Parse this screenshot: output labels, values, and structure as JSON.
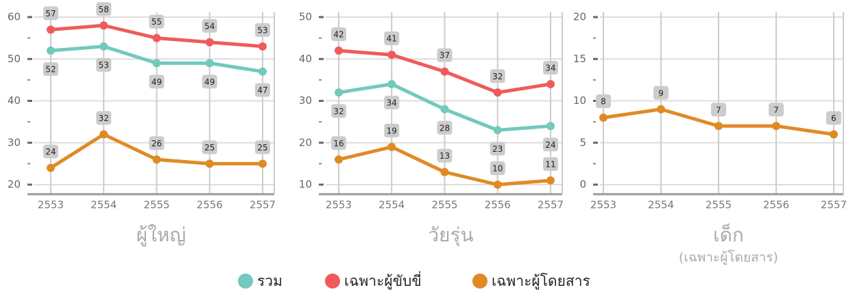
{
  "chart_data": [
    {
      "type": "line",
      "title": "ผู้ใหญ่",
      "categories": [
        "2553",
        "2554",
        "2555",
        "2556",
        "2557"
      ],
      "ylim": [
        20,
        60
      ],
      "yticks": [
        20,
        30,
        40,
        50,
        60
      ],
      "grid": true,
      "series": [
        {
          "name": "รวม",
          "color": "#72c9bc",
          "labels": "below",
          "values": [
            52,
            53,
            49,
            49,
            47
          ]
        },
        {
          "name": "เฉพาะผู้ขับขี่",
          "color": "#ef5b5b",
          "labels": "above",
          "values": [
            57,
            58,
            55,
            54,
            53
          ]
        },
        {
          "name": "เฉพาะผู้โดยสาร",
          "color": "#e08a26",
          "labels": "above",
          "values": [
            24,
            32,
            26,
            25,
            25
          ]
        }
      ]
    },
    {
      "type": "line",
      "title": "วัยรุ่น",
      "categories": [
        "2553",
        "2554",
        "2555",
        "2556",
        "2557"
      ],
      "ylim": [
        10,
        50
      ],
      "yticks": [
        10,
        20,
        30,
        40,
        50
      ],
      "grid": true,
      "series": [
        {
          "name": "รวม",
          "color": "#72c9bc",
          "labels": "below",
          "values": [
            32,
            34,
            28,
            23,
            24
          ]
        },
        {
          "name": "เฉพาะผู้ขับขี่",
          "color": "#ef5b5b",
          "labels": "above",
          "values": [
            42,
            41,
            37,
            32,
            34
          ]
        },
        {
          "name": "เฉพาะผู้โดยสาร",
          "color": "#e08a26",
          "labels": "above",
          "values": [
            16,
            19,
            13,
            10,
            11
          ]
        }
      ]
    },
    {
      "type": "line",
      "title": "เด็ก",
      "subtitle": "(เฉพาะผู้โดยสาร)",
      "categories": [
        "2553",
        "2554",
        "2555",
        "2556",
        "2557"
      ],
      "ylim": [
        0,
        20
      ],
      "yticks": [
        0,
        5,
        10,
        15,
        20
      ],
      "grid": true,
      "series": [
        {
          "name": "เฉพาะผู้โดยสาร",
          "color": "#e08a26",
          "labels": "above",
          "values": [
            8,
            9,
            7,
            7,
            6
          ]
        }
      ]
    }
  ]
}
